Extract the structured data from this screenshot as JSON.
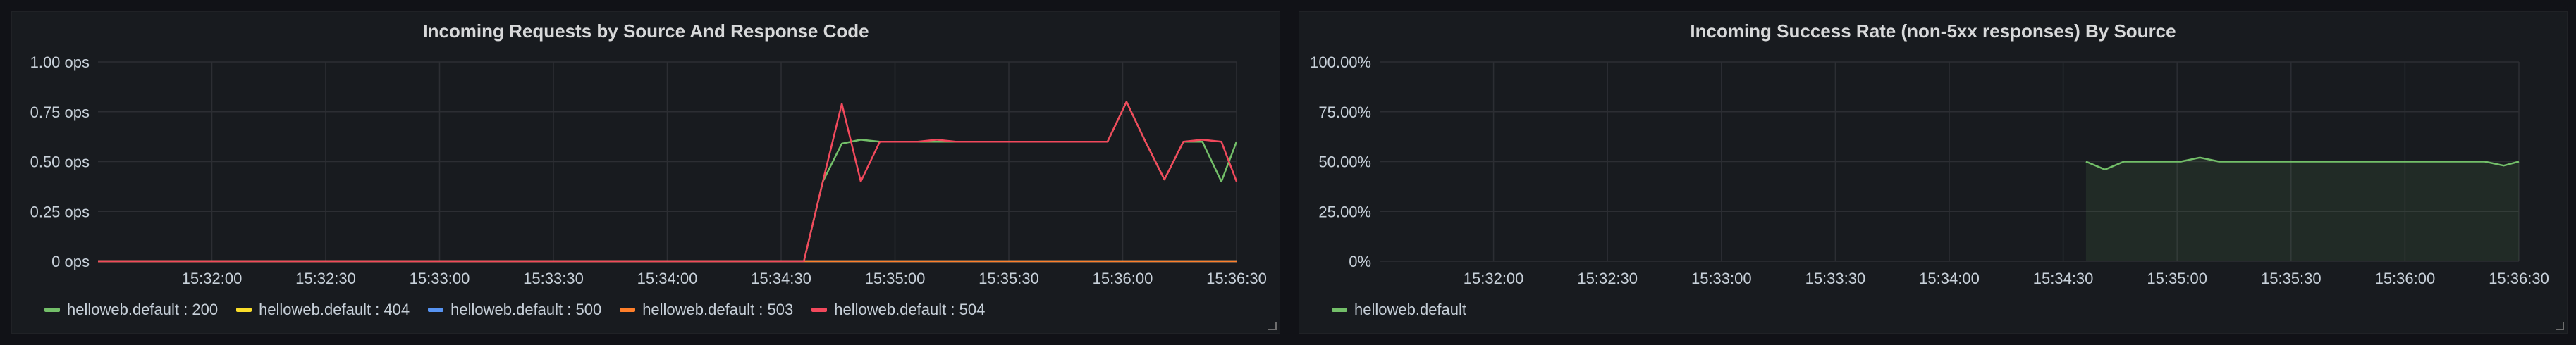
{
  "panels": [
    {
      "title": "Incoming Requests by Source And Response Code",
      "legend": [
        {
          "name": "helloweb.default : 200",
          "color": "#73bf69"
        },
        {
          "name": "helloweb.default : 404",
          "color": "#fade2a"
        },
        {
          "name": "helloweb.default : 500",
          "color": "#5794f2"
        },
        {
          "name": "helloweb.default : 503",
          "color": "#ff7f2a"
        },
        {
          "name": "helloweb.default : 504",
          "color": "#f2495c"
        }
      ]
    },
    {
      "title": "Incoming Success Rate (non-5xx responses) By Source",
      "legend": [
        {
          "name": "helloweb.default",
          "color": "#73bf69"
        }
      ]
    }
  ],
  "chart_data": [
    {
      "type": "line",
      "title": "Incoming Requests by Source And Response Code",
      "x_start": "15:31:30",
      "x_end": "15:36:30",
      "x_ticks": [
        "15:32:00",
        "15:32:30",
        "15:33:00",
        "15:33:30",
        "15:34:00",
        "15:34:30",
        "15:35:00",
        "15:35:30",
        "15:36:00",
        "15:36:30"
      ],
      "ylim": [
        0,
        1
      ],
      "y_ticks": [
        {
          "value": 0,
          "label": "0 ops"
        },
        {
          "value": 0.25,
          "label": "0.25 ops"
        },
        {
          "value": 0.5,
          "label": "0.50 ops"
        },
        {
          "value": 0.75,
          "label": "0.75 ops"
        },
        {
          "value": 1,
          "label": "1.00 ops"
        }
      ],
      "grid": true,
      "legend_position": "bottom-left",
      "series": [
        {
          "name": "helloweb.default : 200",
          "color": "#73bf69",
          "points": [
            [
              "15:31:30",
              0
            ],
            [
              "15:34:36",
              0
            ],
            [
              "15:34:41",
              0.4
            ],
            [
              "15:34:46",
              0.59
            ],
            [
              "15:34:51",
              0.61
            ],
            [
              "15:34:56",
              0.6
            ],
            [
              "15:35:06",
              0.6
            ],
            [
              "15:35:16",
              0.6
            ],
            [
              "15:35:26",
              0.6
            ],
            [
              "15:35:36",
              0.6
            ],
            [
              "15:35:46",
              0.6
            ],
            [
              "15:35:56",
              0.6
            ],
            [
              "15:36:01",
              0.8
            ],
            [
              "15:36:06",
              0.6
            ],
            [
              "15:36:11",
              0.41
            ],
            [
              "15:36:16",
              0.6
            ],
            [
              "15:36:21",
              0.6
            ],
            [
              "15:36:26",
              0.4
            ],
            [
              "15:36:30",
              0.6
            ]
          ]
        },
        {
          "name": "helloweb.default : 404",
          "color": "#fade2a",
          "points": [
            [
              "15:31:30",
              0
            ],
            [
              "15:36:30",
              0
            ]
          ]
        },
        {
          "name": "helloweb.default : 500",
          "color": "#5794f2",
          "points": [
            [
              "15:31:30",
              0
            ],
            [
              "15:36:30",
              0
            ]
          ]
        },
        {
          "name": "helloweb.default : 503",
          "color": "#ff7f2a",
          "points": [
            [
              "15:31:30",
              0
            ],
            [
              "15:36:30",
              0
            ]
          ]
        },
        {
          "name": "helloweb.default : 504",
          "color": "#f2495c",
          "points": [
            [
              "15:31:30",
              0
            ],
            [
              "15:34:36",
              0
            ],
            [
              "15:34:41",
              0.4
            ],
            [
              "15:34:46",
              0.79
            ],
            [
              "15:34:51",
              0.4
            ],
            [
              "15:34:56",
              0.6
            ],
            [
              "15:35:01",
              0.6
            ],
            [
              "15:35:06",
              0.6
            ],
            [
              "15:35:11",
              0.61
            ],
            [
              "15:35:16",
              0.6
            ],
            [
              "15:35:21",
              0.6
            ],
            [
              "15:35:26",
              0.6
            ],
            [
              "15:35:31",
              0.6
            ],
            [
              "15:35:36",
              0.6
            ],
            [
              "15:35:41",
              0.6
            ],
            [
              "15:35:46",
              0.6
            ],
            [
              "15:35:56",
              0.6
            ],
            [
              "15:36:01",
              0.8
            ],
            [
              "15:36:06",
              0.6
            ],
            [
              "15:36:11",
              0.41
            ],
            [
              "15:36:16",
              0.6
            ],
            [
              "15:36:21",
              0.61
            ],
            [
              "15:36:26",
              0.6
            ],
            [
              "15:36:30",
              0.4
            ]
          ]
        }
      ]
    },
    {
      "type": "area",
      "title": "Incoming Success Rate (non-5xx responses) By Source",
      "x_start": "15:31:30",
      "x_end": "15:36:30",
      "x_ticks": [
        "15:32:00",
        "15:32:30",
        "15:33:00",
        "15:33:30",
        "15:34:00",
        "15:34:30",
        "15:35:00",
        "15:35:30",
        "15:36:00",
        "15:36:30"
      ],
      "ylim": [
        0,
        100
      ],
      "y_ticks": [
        {
          "value": 0,
          "label": "0%"
        },
        {
          "value": 25,
          "label": "25.00%"
        },
        {
          "value": 50,
          "label": "50.00%"
        },
        {
          "value": 75,
          "label": "75.00%"
        },
        {
          "value": 100,
          "label": "100.00%"
        }
      ],
      "grid": true,
      "legend_position": "bottom-left",
      "series": [
        {
          "name": "helloweb.default",
          "color": "#73bf69",
          "points": [
            [
              "15:34:36",
              50
            ],
            [
              "15:34:41",
              46
            ],
            [
              "15:34:46",
              50
            ],
            [
              "15:34:51",
              50
            ],
            [
              "15:34:56",
              50
            ],
            [
              "15:35:01",
              50
            ],
            [
              "15:35:06",
              52
            ],
            [
              "15:35:11",
              50
            ],
            [
              "15:35:16",
              50
            ],
            [
              "15:35:21",
              50
            ],
            [
              "15:35:26",
              50
            ],
            [
              "15:35:31",
              50
            ],
            [
              "15:35:36",
              50
            ],
            [
              "15:35:41",
              50
            ],
            [
              "15:35:46",
              50
            ],
            [
              "15:35:51",
              50
            ],
            [
              "15:35:56",
              50
            ],
            [
              "15:36:01",
              50
            ],
            [
              "15:36:06",
              50
            ],
            [
              "15:36:11",
              50
            ],
            [
              "15:36:16",
              50
            ],
            [
              "15:36:21",
              50
            ],
            [
              "15:36:26",
              48
            ],
            [
              "15:36:30",
              50
            ]
          ]
        }
      ]
    }
  ]
}
